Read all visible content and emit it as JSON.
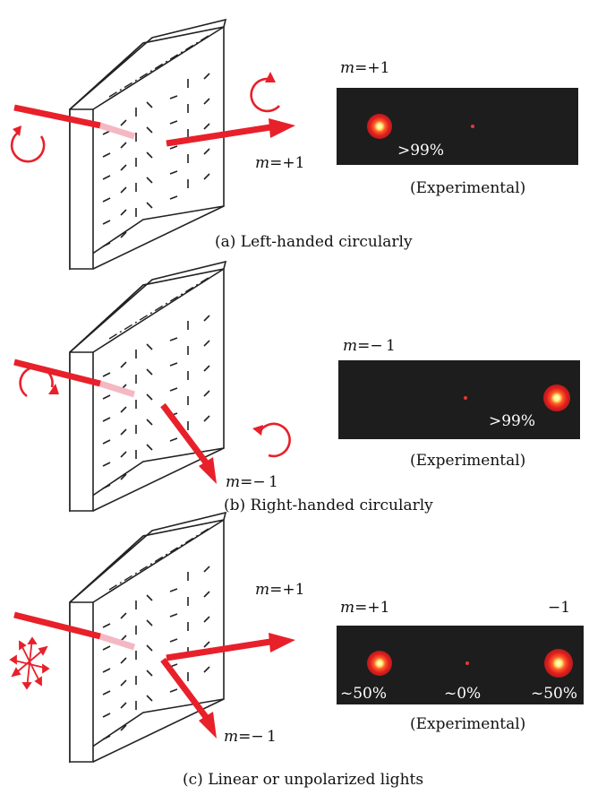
{
  "panels": [
    {
      "id": "a",
      "caption": "(a) Left-handed circularly",
      "beam_label_var": "m",
      "beam_label_val": "=+1",
      "panel_title_var": "m",
      "panel_title_val": "=+1",
      "percent": ">99%",
      "experimental": "(Experimental)"
    },
    {
      "id": "b",
      "caption": "(b) Right-handed circularly",
      "beam_label_var": "m",
      "beam_label_val": "=− 1",
      "panel_title_var": "m",
      "panel_title_val": "=− 1",
      "percent": ">99%",
      "experimental": "(Experimental)"
    },
    {
      "id": "c",
      "caption": "(c) Linear or unpolarized lights",
      "beam_plus_var": "m",
      "beam_plus_val": "=+1",
      "beam_minus_var": "m",
      "beam_minus_val": "=− 1",
      "panel_title_left_var": "m",
      "panel_title_left_val": "=+1",
      "panel_title_right": "−1",
      "percent_left": "~50%",
      "percent_center": "~0%",
      "percent_right": "~50%",
      "experimental": "(Experimental)"
    }
  ],
  "colors": {
    "beam": "#e8202a",
    "panel_bg": "#1d1d1d",
    "spot_core": "#fff176",
    "spot_glow": "#e53935"
  }
}
